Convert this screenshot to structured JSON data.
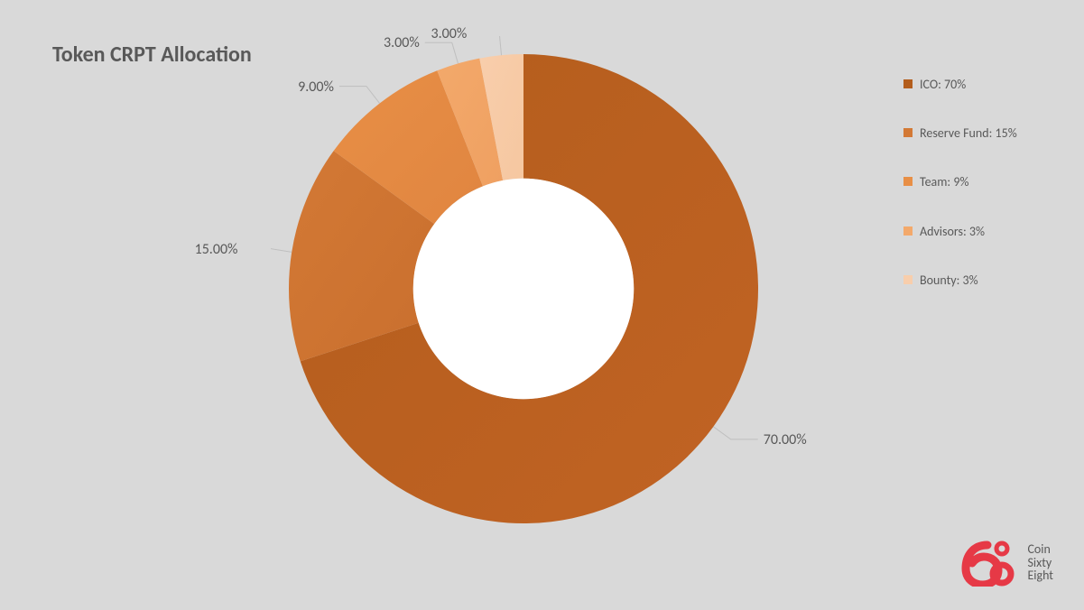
{
  "title": "Token CRPT Allocation",
  "chart": {
    "type": "donut",
    "background_color": "#d9d9d9",
    "inner_radius_ratio": 0.47,
    "outer_radius": 260,
    "center_fill": "#ffffff",
    "start_angle_deg": 0,
    "slices": [
      {
        "label": "ICO",
        "value": 70,
        "percent_text": "70.00%",
        "color_start": "#b35d1c",
        "color_end": "#c16324",
        "legend_text": "ICO: 70%"
      },
      {
        "label": "Reserve Fund",
        "value": 15,
        "percent_text": "15.00%",
        "color_start": "#d37935",
        "color_end": "#c96f2e",
        "legend_text": "Reserve Fund: 15%"
      },
      {
        "label": "Team",
        "value": 9,
        "percent_text": "9.00%",
        "color_start": "#e88f46",
        "color_end": "#e08540",
        "legend_text": "Team: 9%"
      },
      {
        "label": "Advisors",
        "value": 3,
        "percent_text": "3.00%",
        "color_start": "#f3a96b",
        "color_end": "#efa061",
        "legend_text": "Advisors: 3%"
      },
      {
        "label": "Bounty",
        "value": 3,
        "percent_text": "3.00%",
        "color_start": "#f8ceac",
        "color_end": "#f6c7a0",
        "legend_text": "Bounty: 3%"
      }
    ],
    "label_fontsize": 16,
    "label_color": "#595959",
    "leader_line_color": "#bfbfbf",
    "leader_line_width": 1
  },
  "legend": {
    "swatch_size": 10,
    "fontsize": 14,
    "text_color": "#595959"
  },
  "logo": {
    "brand_color": "#e63946",
    "line1": "Coin",
    "line2": "Sixty",
    "line3": "Eight"
  }
}
